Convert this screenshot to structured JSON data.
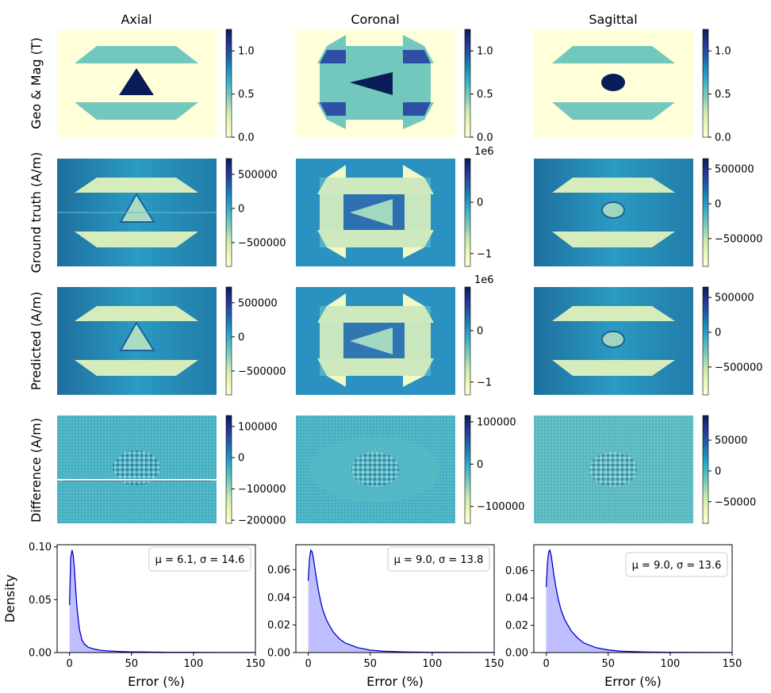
{
  "figure": {
    "columns": [
      "Axial",
      "Coronal",
      "Sagittal"
    ],
    "rows": [
      "Geo & Mag (T)",
      "Ground truth (A/m)",
      "Predicted (A/m)",
      "Difference (A/m)"
    ],
    "colormap": [
      "#ffffd9",
      "#edf8b1",
      "#c7e9b4",
      "#7fcdbb",
      "#41b6c4",
      "#1d91c0",
      "#225ea8",
      "#253494",
      "#081d58"
    ],
    "colorbars": [
      [
        {
          "ticks": [
            {
              "v": 0.0,
              "t": "0.0"
            },
            {
              "v": 0.5,
              "t": "0.5"
            },
            {
              "v": 1.0,
              "t": "1.0"
            }
          ],
          "min": 0.0,
          "max": 1.25,
          "exp": ""
        },
        {
          "ticks": [
            {
              "v": 0.0,
              "t": "0.0"
            },
            {
              "v": 0.5,
              "t": "0.5"
            },
            {
              "v": 1.0,
              "t": "1.0"
            }
          ],
          "min": 0.0,
          "max": 1.25,
          "exp": ""
        },
        {
          "ticks": [
            {
              "v": 0.0,
              "t": "0.0"
            },
            {
              "v": 0.5,
              "t": "0.5"
            },
            {
              "v": 1.0,
              "t": "1.0"
            }
          ],
          "min": 0.0,
          "max": 1.25,
          "exp": ""
        }
      ],
      [
        {
          "ticks": [
            {
              "v": -500000,
              "t": "−500000"
            },
            {
              "v": 0,
              "t": "0"
            },
            {
              "v": 500000,
              "t": "500000"
            }
          ],
          "min": -850000,
          "max": 730000,
          "exp": ""
        },
        {
          "ticks": [
            {
              "v": -1,
              "t": "−1"
            },
            {
              "v": 0,
              "t": "0"
            }
          ],
          "min": -1.25,
          "max": 0.85,
          "exp": "1e6"
        },
        {
          "ticks": [
            {
              "v": -500000,
              "t": "−500000"
            },
            {
              "v": 0,
              "t": "0"
            },
            {
              "v": 500000,
              "t": "500000"
            }
          ],
          "min": -900000,
          "max": 650000,
          "exp": ""
        }
      ],
      [
        {
          "ticks": [
            {
              "v": -500000,
              "t": "−500000"
            },
            {
              "v": 0,
              "t": "0"
            },
            {
              "v": 500000,
              "t": "500000"
            }
          ],
          "min": -850000,
          "max": 730000,
          "exp": ""
        },
        {
          "ticks": [
            {
              "v": -1,
              "t": "−1"
            },
            {
              "v": 0,
              "t": "0"
            }
          ],
          "min": -1.25,
          "max": 0.85,
          "exp": "1e6"
        },
        {
          "ticks": [
            {
              "v": -500000,
              "t": "−500000"
            },
            {
              "v": 0,
              "t": "0"
            },
            {
              "v": 500000,
              "t": "500000"
            }
          ],
          "min": -900000,
          "max": 650000,
          "exp": ""
        }
      ],
      [
        {
          "ticks": [
            {
              "v": -200000,
              "t": "−200000"
            },
            {
              "v": -100000,
              "t": "−100000"
            },
            {
              "v": 0,
              "t": "0"
            },
            {
              "v": 100000,
              "t": "100000"
            }
          ],
          "min": -210000,
          "max": 135000,
          "exp": ""
        },
        {
          "ticks": [
            {
              "v": -100000,
              "t": "−100000"
            },
            {
              "v": 0,
              "t": "0"
            },
            {
              "v": 100000,
              "t": "100000"
            }
          ],
          "min": -140000,
          "max": 115000,
          "exp": ""
        },
        {
          "ticks": [
            {
              "v": -50000,
              "t": "−50000"
            },
            {
              "v": 0,
              "t": "0"
            },
            {
              "v": 50000,
              "t": "50000"
            }
          ],
          "min": -85000,
          "max": 90000,
          "exp": ""
        }
      ]
    ]
  },
  "chart_data": [
    {
      "type": "area",
      "panel": "Axial",
      "ylabel": "Density",
      "xlabel": "Error (%)",
      "xlim": [
        -10,
        150
      ],
      "ylim": [
        0,
        0.102
      ],
      "xticks": [
        0,
        50,
        100,
        150
      ],
      "yticks": [
        0.0,
        0.05,
        0.1
      ],
      "ytick_labels": [
        "0.00",
        "0.05",
        "0.10"
      ],
      "annotation": "μ = 6.1, σ = 14.6",
      "x": [
        0,
        1,
        2,
        3,
        4,
        5,
        6,
        8,
        10,
        12,
        15,
        20,
        25,
        30,
        40,
        50,
        60,
        80,
        100,
        125,
        150
      ],
      "y": [
        0.045,
        0.09,
        0.097,
        0.092,
        0.078,
        0.06,
        0.043,
        0.022,
        0.012,
        0.008,
        0.005,
        0.0032,
        0.0022,
        0.0016,
        0.001,
        0.0007,
        0.0005,
        0.0003,
        0.0002,
        0.0001,
        5e-05
      ]
    },
    {
      "type": "area",
      "panel": "Coronal",
      "ylabel": "",
      "xlabel": "Error (%)",
      "xlim": [
        -10,
        150
      ],
      "ylim": [
        0,
        0.078
      ],
      "xticks": [
        0,
        50,
        100,
        150
      ],
      "yticks": [
        0.0,
        0.02,
        0.04,
        0.06
      ],
      "ytick_labels": [
        "0.00",
        "0.02",
        "0.04",
        "0.06"
      ],
      "annotation": "μ = 9.0, σ = 13.8",
      "x": [
        0,
        1,
        2,
        3,
        4,
        5,
        6,
        8,
        10,
        12,
        15,
        20,
        25,
        30,
        40,
        50,
        60,
        80,
        100,
        125,
        150
      ],
      "y": [
        0.052,
        0.068,
        0.074,
        0.073,
        0.069,
        0.063,
        0.057,
        0.046,
        0.037,
        0.03,
        0.023,
        0.015,
        0.01,
        0.0068,
        0.0035,
        0.0018,
        0.001,
        0.0004,
        0.0002,
        0.0001,
        5e-05
      ]
    },
    {
      "type": "area",
      "panel": "Sagittal",
      "ylabel": "",
      "xlabel": "Error (%)",
      "xlim": [
        -10,
        150
      ],
      "ylim": [
        0,
        0.079
      ],
      "xticks": [
        0,
        50,
        100,
        150
      ],
      "yticks": [
        0.0,
        0.02,
        0.04,
        0.06
      ],
      "ytick_labels": [
        "0.00",
        "0.02",
        "0.04",
        "0.06"
      ],
      "annotation": "μ = 9.0, σ = 13.6",
      "x": [
        0,
        1,
        2,
        3,
        4,
        5,
        6,
        8,
        10,
        12,
        15,
        20,
        25,
        30,
        40,
        50,
        60,
        80,
        100,
        125,
        150
      ],
      "y": [
        0.048,
        0.066,
        0.074,
        0.075,
        0.071,
        0.065,
        0.058,
        0.047,
        0.038,
        0.031,
        0.024,
        0.016,
        0.011,
        0.0072,
        0.0036,
        0.0019,
        0.001,
        0.0004,
        0.0002,
        0.0001,
        5e-05
      ]
    }
  ]
}
